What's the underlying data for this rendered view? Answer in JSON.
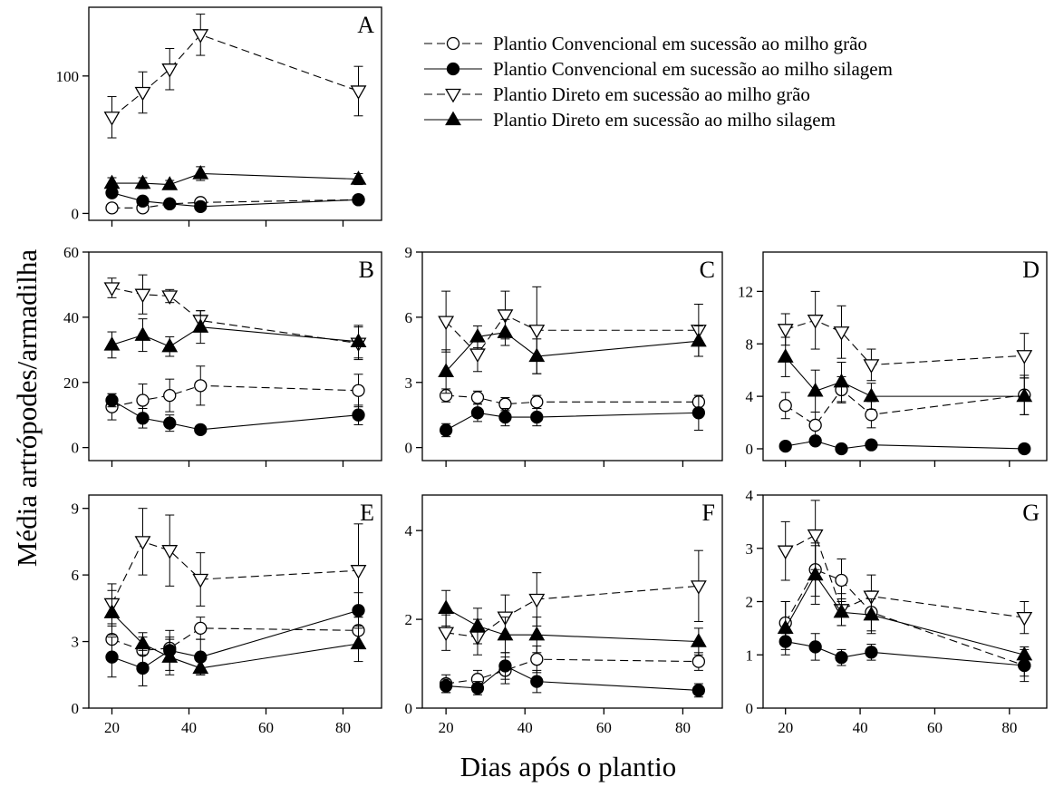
{
  "colors": {
    "ink": "#000000",
    "background": "#ffffff"
  },
  "chart_data": {
    "type": "line",
    "xlabel": "Dias após o plantio",
    "ylabel": "Média artrópodes/armadilha",
    "legend": {
      "placement": "top-right of panel A",
      "entries": [
        {
          "label": "Plantio Convencional em sucessão ao milho grão",
          "marker": "circle-open",
          "line": "dashed"
        },
        {
          "label": "Plantio Convencional em sucessão ao milho silagem",
          "marker": "circle-filled",
          "line": "solid"
        },
        {
          "label": "Plantio Direto em sucessão ao milho grão",
          "marker": "triangle-down-open",
          "line": "dashed"
        },
        {
          "label": "Plantio Direto em sucessão ao milho silagem",
          "marker": "triangle-up-filled",
          "line": "solid"
        }
      ]
    },
    "x_ticks": [
      "20",
      "40",
      "60",
      "80"
    ],
    "x_range": [
      14,
      90
    ],
    "x": [
      20,
      28,
      35,
      43,
      84
    ],
    "panels": [
      {
        "id": "A",
        "ylim": [
          -5,
          150
        ],
        "yticks": [
          0,
          100
        ],
        "ytick_labels": [
          "0",
          "100"
        ],
        "show_xticklabels": false,
        "series": [
          {
            "values": [
              4,
              4,
              7,
              8,
              10
            ],
            "errors": [
              1,
              1,
              1.5,
              1.5,
              2
            ]
          },
          {
            "values": [
              15,
              9,
              7,
              5,
              10
            ],
            "errors": [
              2,
              2,
              1.5,
              1.5,
              2
            ]
          },
          {
            "values": [
              70,
              88,
              105,
              130,
              89
            ],
            "errors": [
              15,
              15,
              15,
              15,
              18
            ]
          },
          {
            "values": [
              22,
              22,
              21,
              29,
              25
            ],
            "errors": [
              4,
              4,
              3,
              5,
              4
            ]
          }
        ]
      },
      {
        "id": "B",
        "ylim": [
          -4,
          60
        ],
        "yticks": [
          0,
          20,
          40,
          60
        ],
        "ytick_labels": [
          "0",
          "20",
          "40",
          "60"
        ],
        "show_xticklabels": false,
        "series": [
          {
            "values": [
              12.5,
              14.5,
              16,
              19,
              17.5
            ],
            "errors": [
              4,
              5,
              5,
              6,
              5
            ]
          },
          {
            "values": [
              14.5,
              9,
              7.5,
              5.5,
              10
            ],
            "errors": [
              2,
              3,
              2.5,
              1,
              3
            ]
          },
          {
            "values": [
              49,
              47,
              46.5,
              39,
              32
            ],
            "errors": [
              3,
              6,
              2,
              3,
              5
            ]
          },
          {
            "values": [
              31.5,
              34.5,
              31,
              37,
              32.5
            ],
            "errors": [
              4,
              5,
              3,
              5,
              5
            ]
          }
        ]
      },
      {
        "id": "C",
        "ylim": [
          -0.6,
          9
        ],
        "yticks": [
          0,
          3,
          6,
          9
        ],
        "ytick_labels": [
          "0",
          "3",
          "6",
          "9"
        ],
        "show_xticklabels": false,
        "series": [
          {
            "values": [
              2.4,
              2.3,
              2.0,
              2.1,
              2.1
            ],
            "errors": [
              0.3,
              0.3,
              0.3,
              0.3,
              0.3
            ]
          },
          {
            "values": [
              0.8,
              1.6,
              1.4,
              1.4,
              1.6
            ],
            "errors": [
              0.3,
              0.4,
              0.4,
              0.4,
              0.8
            ]
          },
          {
            "values": [
              5.8,
              4.3,
              6.1,
              5.4,
              5.4
            ],
            "errors": [
              1.4,
              0.8,
              1.1,
              2.0,
              1.2
            ]
          },
          {
            "values": [
              3.5,
              5.1,
              5.3,
              4.2,
              4.9
            ],
            "errors": [
              1.0,
              0.5,
              0.6,
              0.8,
              0.7
            ]
          }
        ]
      },
      {
        "id": "D",
        "ylim": [
          -0.9,
          15
        ],
        "yticks": [
          0,
          4,
          8,
          12
        ],
        "ytick_labels": [
          "0",
          "4",
          "8",
          "12"
        ],
        "show_xticklabels": false,
        "series": [
          {
            "values": [
              3.3,
              1.8,
              4.5,
              2.6,
              4.1
            ],
            "errors": [
              1.0,
              1.0,
              1.0,
              1.0,
              1.5
            ]
          },
          {
            "values": [
              0.2,
              0.6,
              0.0,
              0.3,
              0.0
            ],
            "errors": [
              0.2,
              0.3,
              0.1,
              0.2,
              0.1
            ]
          },
          {
            "values": [
              9.1,
              9.8,
              8.9,
              6.4,
              7.1
            ],
            "errors": [
              1.2,
              2.2,
              2.0,
              1.2,
              1.7
            ]
          },
          {
            "values": [
              7.0,
              4.4,
              5.1,
              4.0,
              4.0
            ],
            "errors": [
              1.5,
              1.6,
              1.5,
              1.0,
              1.4
            ]
          }
        ]
      },
      {
        "id": "E",
        "ylim": [
          0,
          9.6
        ],
        "yticks": [
          0,
          3,
          6,
          9
        ],
        "ytick_labels": [
          "0",
          "3",
          "6",
          "9"
        ],
        "show_xticklabels": true,
        "series": [
          {
            "values": [
              3.1,
              2.6,
              2.7,
              3.6,
              3.5
            ],
            "errors": [
              0.6,
              0.6,
              0.5,
              0.5,
              0.6
            ]
          },
          {
            "values": [
              2.3,
              1.8,
              2.6,
              2.3,
              4.4
            ],
            "errors": [
              0.9,
              0.8,
              0.9,
              0.8,
              0.8
            ]
          },
          {
            "values": [
              4.7,
              7.5,
              7.1,
              5.8,
              6.2
            ],
            "errors": [
              0.9,
              1.5,
              1.6,
              1.2,
              2.1
            ]
          },
          {
            "values": [
              4.3,
              2.9,
              2.3,
              1.8,
              2.9
            ],
            "errors": [
              1.0,
              0.5,
              0.8,
              0.3,
              0.8
            ]
          }
        ]
      },
      {
        "id": "F",
        "ylim": [
          0,
          4.8
        ],
        "yticks": [
          0,
          2,
          4
        ],
        "ytick_labels": [
          "0",
          "2",
          "4"
        ],
        "show_xticklabels": true,
        "series": [
          {
            "values": [
              0.55,
              0.65,
              0.85,
              1.1,
              1.05
            ],
            "errors": [
              0.2,
              0.2,
              0.3,
              0.3,
              0.2
            ]
          },
          {
            "values": [
              0.5,
              0.45,
              0.95,
              0.6,
              0.4
            ],
            "errors": [
              0.15,
              0.15,
              0.3,
              0.25,
              0.15
            ]
          },
          {
            "values": [
              1.7,
              1.6,
              2.05,
              2.45,
              2.75
            ],
            "errors": [
              0.4,
              0.4,
              0.5,
              0.6,
              0.8
            ]
          },
          {
            "values": [
              2.25,
              1.85,
              1.65,
              1.65,
              1.5
            ],
            "errors": [
              0.4,
              0.4,
              0.4,
              0.4,
              0.3
            ]
          }
        ]
      },
      {
        "id": "G",
        "ylim": [
          0,
          4
        ],
        "yticks": [
          0,
          1,
          2,
          3,
          4
        ],
        "ytick_labels": [
          "0",
          "1",
          "2",
          "3",
          "4"
        ],
        "show_xticklabels": true,
        "series": [
          {
            "values": [
              1.6,
              2.6,
              2.4,
              1.8,
              0.8
            ],
            "errors": [
              0.4,
              0.5,
              0.4,
              0.4,
              0.3
            ]
          },
          {
            "values": [
              1.25,
              1.15,
              0.95,
              1.05,
              0.8
            ],
            "errors": [
              0.15,
              0.25,
              0.15,
              0.15,
              0.2
            ]
          },
          {
            "values": [
              2.95,
              3.25,
              1.85,
              2.1,
              1.7
            ],
            "errors": [
              0.55,
              0.65,
              0.3,
              0.4,
              0.3
            ]
          },
          {
            "values": [
              1.5,
              2.5,
              1.8,
              1.75,
              1.0
            ],
            "errors": [
              0.5,
              0.55,
              0.25,
              0.3,
              0.15
            ]
          }
        ]
      }
    ]
  }
}
